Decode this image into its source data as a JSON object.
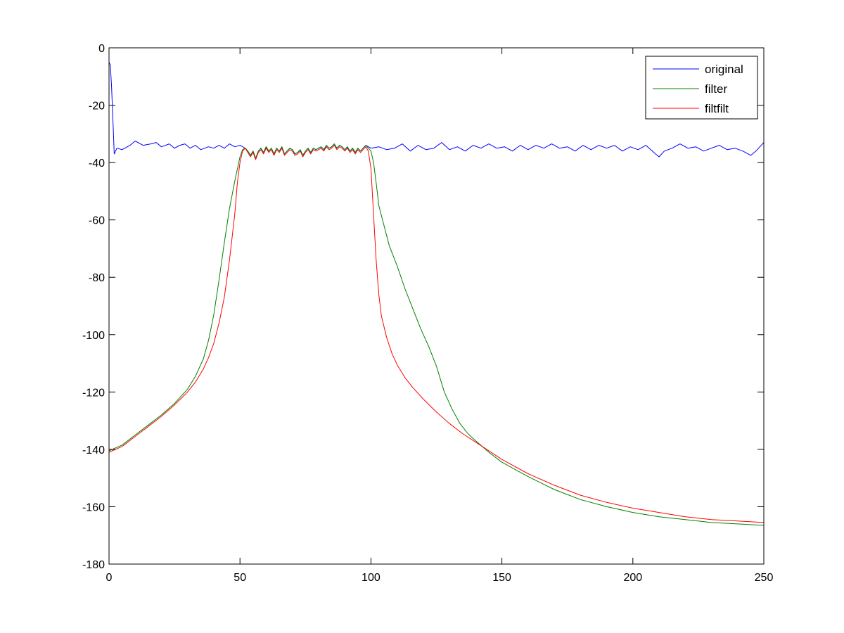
{
  "chart_data": {
    "type": "line",
    "title": "",
    "xlabel": "",
    "ylabel": "",
    "xlim": [
      0,
      250
    ],
    "ylim": [
      -180,
      0
    ],
    "xticks": [
      0,
      50,
      100,
      150,
      200,
      250
    ],
    "yticks": [
      0,
      -20,
      -40,
      -60,
      -80,
      -100,
      -120,
      -140,
      -160,
      -180
    ],
    "grid": false,
    "legend_position": "top-right",
    "series": [
      {
        "name": "original",
        "color": "#0000ff",
        "points": [
          [
            0,
            -5
          ],
          [
            0.5,
            -6
          ],
          [
            1,
            -14
          ],
          [
            1.6,
            -28
          ],
          [
            2,
            -37
          ],
          [
            2.5,
            -36
          ],
          [
            3,
            -35
          ],
          [
            5,
            -35.5
          ],
          [
            8,
            -34
          ],
          [
            10,
            -32.5
          ],
          [
            13,
            -34
          ],
          [
            16,
            -33.5
          ],
          [
            18,
            -33
          ],
          [
            20,
            -34.5
          ],
          [
            23,
            -33.5
          ],
          [
            25,
            -35
          ],
          [
            27,
            -34
          ],
          [
            29,
            -33.5
          ],
          [
            31,
            -35
          ],
          [
            33,
            -34
          ],
          [
            35,
            -35.5
          ],
          [
            38,
            -34.5
          ],
          [
            40,
            -35
          ],
          [
            42,
            -34
          ],
          [
            44,
            -35
          ],
          [
            46,
            -33.5
          ],
          [
            48,
            -34.5
          ],
          [
            50,
            -34
          ],
          [
            52,
            -35
          ],
          [
            53,
            -36
          ],
          [
            54,
            -37.5
          ],
          [
            55,
            -36
          ],
          [
            56,
            -38.5
          ],
          [
            57,
            -36
          ],
          [
            58,
            -35
          ],
          [
            59,
            -36.5
          ],
          [
            60,
            -34.5
          ],
          [
            61,
            -36
          ],
          [
            62,
            -35
          ],
          [
            63,
            -37
          ],
          [
            64,
            -35
          ],
          [
            65,
            -36
          ],
          [
            66,
            -34.5
          ],
          [
            67,
            -37
          ],
          [
            68,
            -36
          ],
          [
            69,
            -35
          ],
          [
            70,
            -35.5
          ],
          [
            71,
            -37
          ],
          [
            72,
            -36.5
          ],
          [
            73,
            -35.5
          ],
          [
            74,
            -37.5
          ],
          [
            75,
            -36
          ],
          [
            76,
            -35
          ],
          [
            77,
            -36.5
          ],
          [
            78,
            -35
          ],
          [
            79,
            -35.5
          ],
          [
            80,
            -35
          ],
          [
            81,
            -34.5
          ],
          [
            82,
            -35.5
          ],
          [
            83,
            -34
          ],
          [
            84,
            -35
          ],
          [
            85,
            -34.5
          ],
          [
            86,
            -33.5
          ],
          [
            87,
            -35
          ],
          [
            88,
            -34
          ],
          [
            89,
            -34.5
          ],
          [
            90,
            -35.5
          ],
          [
            91,
            -34.5
          ],
          [
            92,
            -36
          ],
          [
            93,
            -35
          ],
          [
            94,
            -36.5
          ],
          [
            95,
            -35
          ],
          [
            96,
            -36
          ],
          [
            97,
            -35
          ],
          [
            98,
            -34
          ],
          [
            99,
            -34.5
          ],
          [
            100,
            -35
          ],
          [
            103,
            -34.5
          ],
          [
            106,
            -35.5
          ],
          [
            109,
            -35
          ],
          [
            112,
            -33.5
          ],
          [
            115,
            -36
          ],
          [
            118,
            -34
          ],
          [
            121,
            -35.5
          ],
          [
            124,
            -35
          ],
          [
            127,
            -33
          ],
          [
            130,
            -35.5
          ],
          [
            133,
            -34.5
          ],
          [
            136,
            -36
          ],
          [
            139,
            -34
          ],
          [
            142,
            -35
          ],
          [
            145,
            -33.5
          ],
          [
            148,
            -35
          ],
          [
            151,
            -34.5
          ],
          [
            154,
            -36
          ],
          [
            157,
            -34
          ],
          [
            160,
            -35.5
          ],
          [
            163,
            -34
          ],
          [
            166,
            -35
          ],
          [
            169,
            -33.5
          ],
          [
            172,
            -35
          ],
          [
            175,
            -34.5
          ],
          [
            178,
            -36
          ],
          [
            181,
            -34
          ],
          [
            184,
            -35.5
          ],
          [
            187,
            -34
          ],
          [
            190,
            -35
          ],
          [
            193,
            -34
          ],
          [
            196,
            -36
          ],
          [
            199,
            -34.5
          ],
          [
            202,
            -35.5
          ],
          [
            205,
            -34
          ],
          [
            208,
            -36.5
          ],
          [
            210,
            -38
          ],
          [
            212,
            -36
          ],
          [
            215,
            -35
          ],
          [
            218,
            -33.5
          ],
          [
            221,
            -35
          ],
          [
            224,
            -34.5
          ],
          [
            227,
            -36
          ],
          [
            230,
            -35
          ],
          [
            233,
            -34
          ],
          [
            236,
            -35.5
          ],
          [
            239,
            -35
          ],
          [
            242,
            -36
          ],
          [
            245,
            -37.5
          ],
          [
            247,
            -36
          ],
          [
            249,
            -34
          ],
          [
            250,
            -33
          ]
        ]
      },
      {
        "name": "filter",
        "color": "#008000",
        "points": [
          [
            0,
            -140.5
          ],
          [
            5,
            -138.5
          ],
          [
            10,
            -135
          ],
          [
            15,
            -131.5
          ],
          [
            20,
            -128
          ],
          [
            25,
            -124
          ],
          [
            30,
            -119
          ],
          [
            33,
            -114.5
          ],
          [
            36,
            -108.5
          ],
          [
            38,
            -102
          ],
          [
            40,
            -93
          ],
          [
            42,
            -81
          ],
          [
            44,
            -68
          ],
          [
            46,
            -56
          ],
          [
            48,
            -46.5
          ],
          [
            50,
            -38
          ],
          [
            51,
            -35.5
          ],
          [
            52,
            -35
          ],
          [
            53,
            -36
          ],
          [
            54,
            -37.5
          ],
          [
            55,
            -36
          ],
          [
            56,
            -38.5
          ],
          [
            57,
            -36
          ],
          [
            58,
            -35
          ],
          [
            59,
            -36.5
          ],
          [
            60,
            -34.5
          ],
          [
            61,
            -36
          ],
          [
            62,
            -35
          ],
          [
            63,
            -37
          ],
          [
            64,
            -35
          ],
          [
            65,
            -36
          ],
          [
            66,
            -34.5
          ],
          [
            67,
            -37
          ],
          [
            68,
            -36
          ],
          [
            69,
            -35
          ],
          [
            70,
            -35.5
          ],
          [
            71,
            -37
          ],
          [
            72,
            -36.5
          ],
          [
            73,
            -35.5
          ],
          [
            74,
            -37.5
          ],
          [
            75,
            -36
          ],
          [
            76,
            -35
          ],
          [
            77,
            -36.5
          ],
          [
            78,
            -35
          ],
          [
            79,
            -35.5
          ],
          [
            80,
            -35
          ],
          [
            81,
            -34.5
          ],
          [
            82,
            -35.5
          ],
          [
            83,
            -34
          ],
          [
            84,
            -35
          ],
          [
            85,
            -34.5
          ],
          [
            86,
            -33.5
          ],
          [
            87,
            -35
          ],
          [
            88,
            -34
          ],
          [
            89,
            -34.5
          ],
          [
            90,
            -35.5
          ],
          [
            91,
            -34.5
          ],
          [
            92,
            -36
          ],
          [
            93,
            -35
          ],
          [
            94,
            -36.5
          ],
          [
            95,
            -35
          ],
          [
            96,
            -36
          ],
          [
            97,
            -35
          ],
          [
            98,
            -34
          ],
          [
            99,
            -35
          ],
          [
            100,
            -36
          ],
          [
            101,
            -40
          ],
          [
            102,
            -47
          ],
          [
            103,
            -55
          ],
          [
            105,
            -62
          ],
          [
            107,
            -69
          ],
          [
            110,
            -76
          ],
          [
            113,
            -84
          ],
          [
            116,
            -91
          ],
          [
            119,
            -98
          ],
          [
            122,
            -104
          ],
          [
            125,
            -111
          ],
          [
            128,
            -120
          ],
          [
            131,
            -126
          ],
          [
            134,
            -131
          ],
          [
            137,
            -134.5
          ],
          [
            140,
            -137
          ],
          [
            145,
            -141
          ],
          [
            150,
            -144.5
          ],
          [
            160,
            -149.5
          ],
          [
            170,
            -154
          ],
          [
            180,
            -157.5
          ],
          [
            190,
            -160
          ],
          [
            200,
            -162
          ],
          [
            210,
            -163.5
          ],
          [
            220,
            -164.5
          ],
          [
            230,
            -165.5
          ],
          [
            240,
            -166
          ],
          [
            250,
            -166.5
          ]
        ]
      },
      {
        "name": "filtfilt",
        "color": "#ff0000",
        "points": [
          [
            0,
            -141
          ],
          [
            5,
            -139
          ],
          [
            10,
            -135.5
          ],
          [
            15,
            -132
          ],
          [
            20,
            -128.5
          ],
          [
            25,
            -124.5
          ],
          [
            30,
            -120
          ],
          [
            33,
            -116.5
          ],
          [
            36,
            -112
          ],
          [
            38,
            -108
          ],
          [
            40,
            -103
          ],
          [
            42,
            -96
          ],
          [
            44,
            -87
          ],
          [
            46,
            -74
          ],
          [
            48,
            -58
          ],
          [
            49,
            -47
          ],
          [
            50,
            -40
          ],
          [
            51,
            -36
          ],
          [
            52,
            -35
          ],
          [
            53,
            -36.5
          ],
          [
            54,
            -38
          ],
          [
            55,
            -36.5
          ],
          [
            56,
            -39
          ],
          [
            57,
            -36.5
          ],
          [
            58,
            -35.5
          ],
          [
            59,
            -37
          ],
          [
            60,
            -35
          ],
          [
            61,
            -36.5
          ],
          [
            62,
            -35.5
          ],
          [
            63,
            -37.5
          ],
          [
            64,
            -35.5
          ],
          [
            65,
            -36.5
          ],
          [
            66,
            -35
          ],
          [
            67,
            -37.5
          ],
          [
            68,
            -36.5
          ],
          [
            69,
            -35.5
          ],
          [
            70,
            -36
          ],
          [
            71,
            -37.5
          ],
          [
            72,
            -37
          ],
          [
            73,
            -36
          ],
          [
            74,
            -38
          ],
          [
            75,
            -36.5
          ],
          [
            76,
            -35.5
          ],
          [
            77,
            -37
          ],
          [
            78,
            -35.5
          ],
          [
            79,
            -36
          ],
          [
            80,
            -35.5
          ],
          [
            81,
            -35
          ],
          [
            82,
            -36
          ],
          [
            83,
            -34.5
          ],
          [
            84,
            -35.5
          ],
          [
            85,
            -35
          ],
          [
            86,
            -34
          ],
          [
            87,
            -35.5
          ],
          [
            88,
            -34.5
          ],
          [
            89,
            -35
          ],
          [
            90,
            -36
          ],
          [
            91,
            -35
          ],
          [
            92,
            -36.5
          ],
          [
            93,
            -35.5
          ],
          [
            94,
            -37
          ],
          [
            95,
            -35.5
          ],
          [
            96,
            -36.5
          ],
          [
            97,
            -35.5
          ],
          [
            98,
            -34.5
          ],
          [
            99,
            -36
          ],
          [
            100,
            -42
          ],
          [
            101,
            -58
          ],
          [
            102,
            -74
          ],
          [
            103,
            -86
          ],
          [
            104,
            -93.5
          ],
          [
            106,
            -101
          ],
          [
            108,
            -106.5
          ],
          [
            110,
            -110.5
          ],
          [
            113,
            -115
          ],
          [
            116,
            -118.5
          ],
          [
            120,
            -122.5
          ],
          [
            125,
            -127
          ],
          [
            130,
            -131
          ],
          [
            135,
            -134.5
          ],
          [
            140,
            -137.5
          ],
          [
            145,
            -140.5
          ],
          [
            150,
            -143.5
          ],
          [
            160,
            -148.5
          ],
          [
            170,
            -152.5
          ],
          [
            180,
            -156
          ],
          [
            190,
            -158.5
          ],
          [
            200,
            -160.5
          ],
          [
            210,
            -162
          ],
          [
            220,
            -163.5
          ],
          [
            230,
            -164.5
          ],
          [
            240,
            -165
          ],
          [
            250,
            -165.5
          ]
        ]
      }
    ]
  }
}
